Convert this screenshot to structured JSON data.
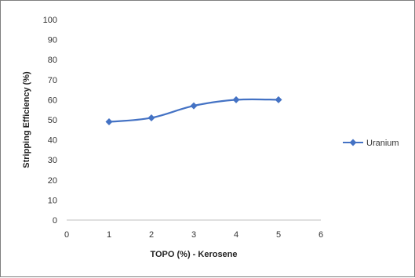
{
  "chart_data": {
    "type": "line",
    "title": "",
    "xlabel": "TOPO (%) - Kerosene",
    "ylabel": "Stripping Efficiency (%)",
    "xlim": [
      0,
      6
    ],
    "ylim": [
      0,
      100
    ],
    "x_ticks": [
      0,
      1,
      2,
      3,
      4,
      5,
      6
    ],
    "y_ticks": [
      0,
      10,
      20,
      30,
      40,
      50,
      60,
      70,
      80,
      90,
      100
    ],
    "grid": false,
    "legend_position": "right",
    "series": [
      {
        "name": "Uranium",
        "color": "#4472c4",
        "marker": "diamond",
        "smooth": true,
        "x": [
          1,
          2,
          3,
          4,
          5
        ],
        "y": [
          49,
          51,
          57,
          60,
          60
        ]
      }
    ]
  }
}
